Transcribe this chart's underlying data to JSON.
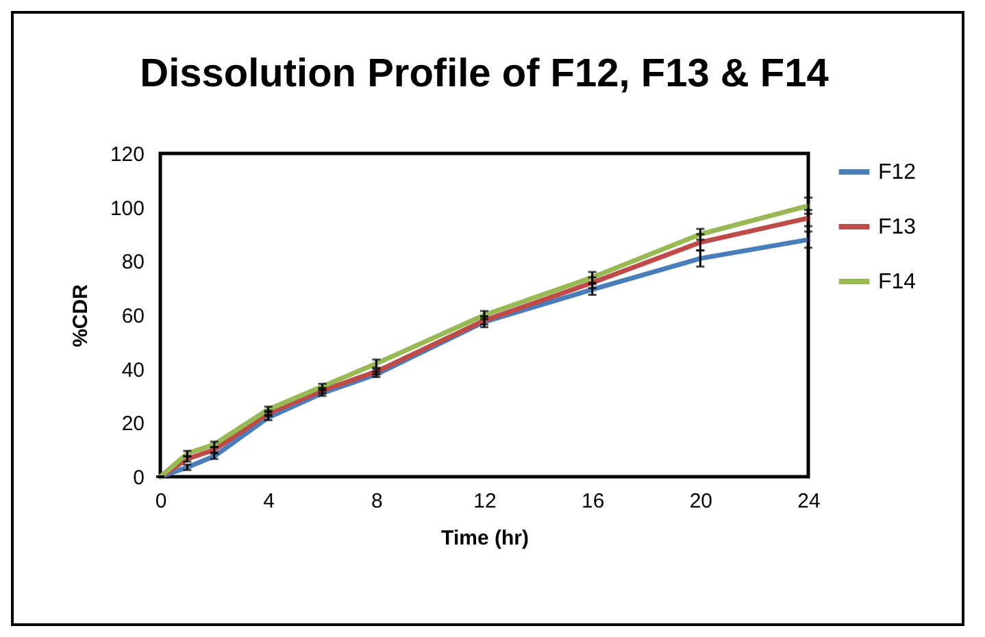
{
  "chart_data": {
    "type": "line",
    "title": "Dissolution Profile of F12, F13 & F14",
    "xlabel": "Time (hr)",
    "ylabel": "%CDR",
    "x": [
      0,
      1,
      2,
      4,
      6,
      8,
      12,
      16,
      20,
      24
    ],
    "xlim": [
      0,
      24
    ],
    "xticks": [
      0,
      4,
      8,
      12,
      16,
      20,
      24
    ],
    "ylim": [
      0,
      120
    ],
    "yticks": [
      0,
      20,
      40,
      60,
      80,
      100,
      120
    ],
    "grid": false,
    "legend": "right",
    "series": [
      {
        "name": "F12",
        "color": "#4a7ebb",
        "values": [
          0,
          3.5,
          7.6,
          22,
          31,
          38,
          57.5,
          69.5,
          81,
          88
        ],
        "errors": [
          0,
          1,
          1,
          1,
          1,
          1,
          2,
          2,
          3,
          3
        ]
      },
      {
        "name": "F13",
        "color": "#be4b48",
        "values": [
          0,
          6.6,
          10,
          23.5,
          32,
          39,
          58,
          72,
          87,
          96
        ],
        "errors": [
          0,
          1,
          1,
          1,
          1,
          1,
          1.5,
          2,
          3,
          3
        ]
      },
      {
        "name": "F14",
        "color": "#98b954",
        "values": [
          0,
          8.6,
          12,
          25,
          33.5,
          42,
          60,
          74,
          90,
          100.6
        ],
        "errors": [
          0,
          1,
          1,
          1,
          1,
          1.5,
          1.5,
          2,
          2,
          3
        ]
      }
    ]
  }
}
